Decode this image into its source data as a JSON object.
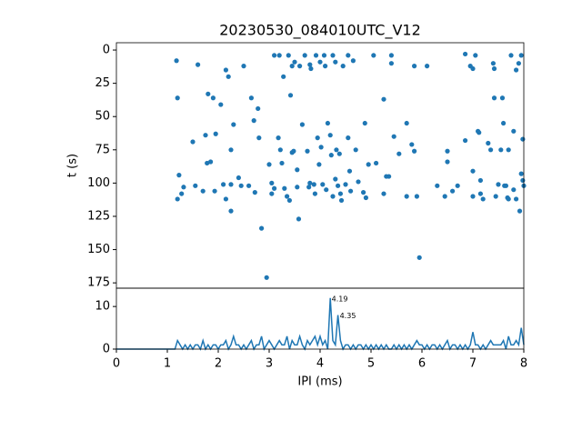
{
  "chart_data": [
    {
      "type": "scatter",
      "title": "20230530_084010UTC_V12",
      "y_label": "t (s)",
      "series": [
        {
          "color": "#1f77b4",
          "x": [
            1.18,
            1.2,
            1.23,
            1.2,
            1.28,
            1.32,
            1.5,
            1.6,
            1.55,
            1.7,
            1.75,
            1.8,
            1.78,
            1.85,
            1.9,
            1.95,
            1.93,
            2.05,
            2.1,
            2.15,
            2.2,
            2.15,
            2.25,
            2.25,
            2.3,
            2.25,
            2.4,
            2.45,
            2.5,
            2.6,
            2.65,
            2.7,
            2.72,
            2.78,
            2.8,
            2.85,
            2.95,
            3.0,
            3.05,
            3.1,
            3.05,
            3.1,
            3.18,
            3.2,
            3.22,
            3.25,
            3.28,
            3.3,
            3.35,
            3.4,
            3.38,
            3.45,
            3.5,
            3.42,
            3.45,
            3.48,
            3.55,
            3.55,
            3.58,
            3.6,
            3.65,
            3.7,
            3.75,
            3.78,
            3.8,
            3.82,
            3.8,
            3.88,
            3.9,
            3.92,
            3.95,
            3.98,
            4.0,
            4.02,
            4.05,
            4.1,
            4.08,
            4.12,
            4.15,
            4.2,
            4.22,
            4.25,
            4.25,
            4.3,
            4.3,
            4.32,
            4.35,
            4.38,
            4.4,
            4.42,
            4.45,
            4.5,
            4.55,
            4.55,
            4.58,
            4.6,
            4.65,
            4.7,
            4.75,
            4.85,
            4.9,
            4.88,
            4.95,
            5.05,
            5.1,
            5.25,
            5.25,
            5.3,
            5.35,
            5.4,
            5.4,
            5.45,
            5.55,
            5.7,
            5.7,
            5.8,
            5.85,
            5.85,
            5.9,
            5.95,
            6.1,
            6.3,
            6.45,
            6.5,
            6.5,
            6.6,
            6.7,
            6.85,
            6.85,
            6.95,
            7.0,
            7.0,
            7.0,
            7.05,
            7.1,
            7.12,
            7.15,
            7.15,
            7.2,
            7.3,
            7.35,
            7.4,
            7.42,
            7.42,
            7.45,
            7.5,
            7.55,
            7.58,
            7.6,
            7.62,
            7.65,
            7.68,
            7.7,
            7.75,
            7.8,
            7.85,
            7.85,
            7.9,
            7.92,
            7.95,
            7.98,
            8.0,
            7.95,
            7.98,
            7.7,
            7.8
          ],
          "values": [
            8,
            36,
            94,
            112,
            108,
            103,
            69,
            11,
            102,
            106,
            64,
            33,
            85,
            84,
            36,
            63,
            106,
            41,
            101,
            15,
            20,
            112,
            121,
            75,
            56,
            101,
            96,
            102,
            12,
            102,
            36,
            53,
            107,
            44,
            66,
            134,
            171,
            86,
            100,
            4,
            108,
            104,
            66,
            4,
            75,
            85,
            20,
            104,
            110,
            113,
            4,
            12,
            9,
            34,
            77,
            76,
            103,
            90,
            127,
            12,
            56,
            4,
            76,
            103,
            11,
            14,
            100,
            101,
            108,
            4,
            66,
            86,
            9,
            73,
            101,
            12,
            4,
            105,
            55,
            64,
            79,
            110,
            4,
            9,
            97,
            75,
            102,
            78,
            108,
            113,
            12,
            101,
            4,
            66,
            91,
            106,
            8,
            75,
            99,
            107,
            111,
            55,
            86,
            4,
            85,
            37,
            108,
            95,
            95,
            4,
            10,
            65,
            78,
            110,
            55,
            71,
            76,
            12,
            110,
            156,
            12,
            102,
            110,
            84,
            76,
            106,
            102,
            3,
            68,
            12,
            14,
            91,
            110,
            4,
            61,
            62,
            98,
            108,
            112,
            70,
            75,
            10,
            14,
            36,
            110,
            101,
            75,
            36,
            55,
            102,
            102,
            111,
            75,
            4,
            61,
            112,
            15,
            10,
            121,
            4,
            98,
            102,
            93,
            67,
            112,
            105
          ]
        }
      ],
      "xlim": [
        0,
        8
      ],
      "ylim": [
        179,
        -5.5
      ],
      "yticks": [
        0,
        25,
        50,
        75,
        100,
        125,
        150,
        175
      ]
    },
    {
      "type": "line",
      "x_label": "IPI (ms)",
      "series": [
        {
          "color": "#1f77b4",
          "x": [
            0,
            0.05,
            0.1,
            0.15,
            0.2,
            0.25,
            0.3,
            0.35,
            0.4,
            0.45,
            0.5,
            0.55,
            0.6,
            0.65,
            0.7,
            0.75,
            0.8,
            0.85,
            0.9,
            0.95,
            1,
            1.05,
            1.1,
            1.15,
            1.2,
            1.25,
            1.3,
            1.35,
            1.4,
            1.45,
            1.5,
            1.55,
            1.6,
            1.65,
            1.7,
            1.75,
            1.8,
            1.85,
            1.9,
            1.95,
            2,
            2.05,
            2.1,
            2.15,
            2.2,
            2.25,
            2.3,
            2.35,
            2.4,
            2.45,
            2.5,
            2.55,
            2.6,
            2.65,
            2.7,
            2.75,
            2.8,
            2.85,
            2.9,
            2.95,
            3,
            3.05,
            3.1,
            3.15,
            3.2,
            3.25,
            3.3,
            3.35,
            3.4,
            3.45,
            3.5,
            3.55,
            3.6,
            3.65,
            3.7,
            3.75,
            3.8,
            3.85,
            3.9,
            3.95,
            4,
            4.05,
            4.1,
            4.15,
            4.2,
            4.25,
            4.3,
            4.35,
            4.4,
            4.45,
            4.5,
            4.55,
            4.6,
            4.65,
            4.7,
            4.75,
            4.8,
            4.85,
            4.9,
            4.95,
            5,
            5.05,
            5.1,
            5.15,
            5.2,
            5.25,
            5.3,
            5.35,
            5.4,
            5.45,
            5.5,
            5.55,
            5.6,
            5.65,
            5.7,
            5.75,
            5.8,
            5.85,
            5.9,
            5.95,
            6,
            6.05,
            6.1,
            6.15,
            6.2,
            6.25,
            6.3,
            6.35,
            6.4,
            6.45,
            6.5,
            6.55,
            6.6,
            6.65,
            6.7,
            6.75,
            6.8,
            6.85,
            6.9,
            6.95,
            7,
            7.05,
            7.1,
            7.15,
            7.2,
            7.25,
            7.3,
            7.35,
            7.4,
            7.45,
            7.5,
            7.55,
            7.6,
            7.65,
            7.7,
            7.75,
            7.8,
            7.85,
            7.9,
            7.95,
            8
          ],
          "values": [
            0,
            0,
            0,
            0,
            0,
            0,
            0,
            0,
            0,
            0,
            0,
            0,
            0,
            0,
            0,
            0,
            0,
            0,
            0,
            0,
            0,
            0,
            0,
            0,
            2,
            1,
            0,
            1,
            0,
            1,
            0,
            1,
            1,
            0,
            2,
            0,
            1,
            0,
            1,
            1,
            0,
            1,
            1,
            2,
            0,
            1,
            3,
            1,
            1,
            0,
            1,
            0,
            1,
            2,
            0,
            1,
            1,
            3,
            0,
            1,
            2,
            1,
            0,
            1,
            2,
            1,
            1,
            3,
            0,
            2,
            1,
            1,
            3,
            1,
            0,
            2,
            1,
            2,
            3,
            1,
            3,
            1,
            2,
            0,
            12,
            2,
            1,
            8,
            2,
            0,
            1,
            1,
            0,
            1,
            0,
            1,
            1,
            0,
            1,
            0,
            1,
            0,
            1,
            0,
            1,
            0,
            1,
            0,
            0,
            1,
            0,
            1,
            0,
            1,
            0,
            1,
            0,
            1,
            2,
            1,
            1,
            0,
            1,
            0,
            1,
            1,
            0,
            1,
            0,
            1,
            2,
            0,
            1,
            1,
            0,
            1,
            0,
            1,
            0,
            1,
            4,
            1,
            1,
            0,
            1,
            0,
            1,
            2,
            1,
            1,
            1,
            1,
            2,
            0,
            3,
            1,
            1,
            2,
            1,
            5,
            1
          ]
        }
      ],
      "annotations": [
        {
          "x": 4.19,
          "y": 12,
          "text": "4.19"
        },
        {
          "x": 4.35,
          "y": 8,
          "text": "4.35"
        }
      ],
      "xlim": [
        0,
        8
      ],
      "xticks": [
        0,
        1,
        2,
        3,
        4,
        5,
        6,
        7,
        8
      ],
      "ylim": [
        0,
        14.3
      ],
      "yticks": [
        0,
        10
      ]
    }
  ]
}
